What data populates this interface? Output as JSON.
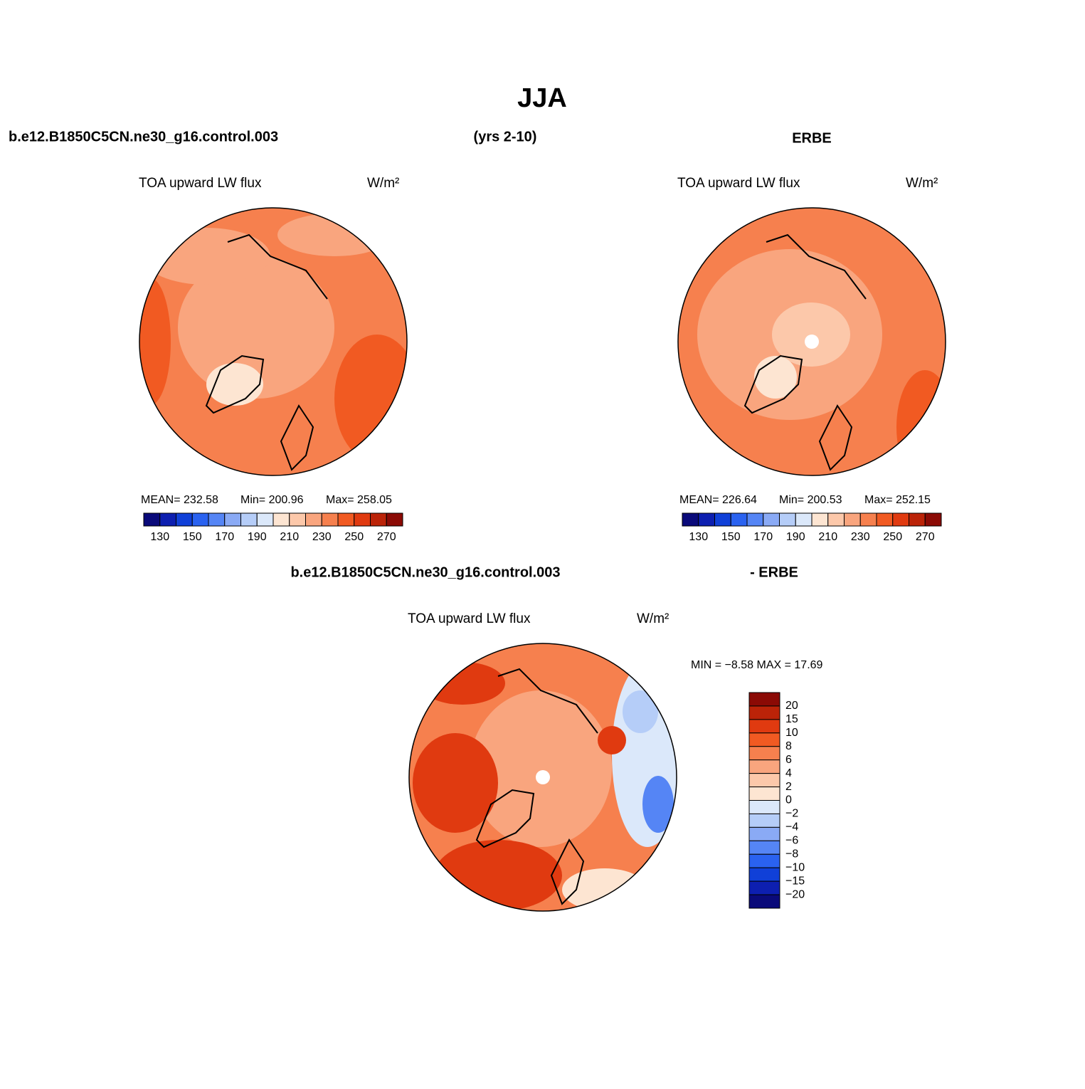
{
  "title": "JJA",
  "case_name": "b.e12.B1850C5CN.ne30_g16.control.003",
  "years": "(yrs 2-10)",
  "reference": "ERBE",
  "panels": [
    {
      "variable": "TOA upward LW flux",
      "units": "W/m²",
      "mean": "MEAN= 232.58",
      "min": "Min= 200.96",
      "max": "Max= 258.05"
    },
    {
      "variable": "TOA upward LW flux",
      "units": "W/m²",
      "mean": "MEAN= 226.64",
      "min": "Min= 200.53",
      "max": "Max= 252.15"
    }
  ],
  "difference": {
    "case_name": "b.e12.B1850C5CN.ne30_g16.control.003",
    "reference": "- ERBE",
    "variable": "TOA upward LW flux",
    "units": "W/m²",
    "min_max": "MIN =  −8.58 MAX =   17.69"
  },
  "colorbar": {
    "colors": [
      "#0a0a7a",
      "#0d1fb0",
      "#1040d8",
      "#2a62f0",
      "#5585f5",
      "#8aaaf5",
      "#b5cdf8",
      "#dbe8fa",
      "#fde5d2",
      "#fcc8aa",
      "#f9a57e",
      "#f6804e",
      "#f15a22",
      "#e03a10",
      "#bb2308",
      "#8b0a05"
    ],
    "labels": [
      "130",
      "150",
      "170",
      "190",
      "210",
      "230",
      "250",
      "270"
    ]
  },
  "diff_colorbar": {
    "labels": [
      "20",
      "15",
      "10",
      "8",
      "6",
      "4",
      "2",
      "0",
      "−2",
      "−4",
      "−6",
      "−8",
      "−10",
      "−15",
      "−20"
    ]
  }
}
